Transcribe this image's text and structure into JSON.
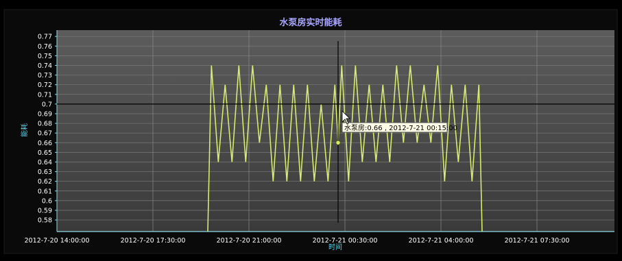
{
  "chart_data": {
    "type": "line",
    "title": "水泵房实时能耗",
    "xlabel": "时间",
    "ylabel": "能耗",
    "x_ticks": [
      "2012-7-20 14:00:00",
      "2012-7-20 17:30:00",
      "2012-7-20 21:00:00",
      "2012-7-21 00:30:00",
      "2012-7-21 04:00:00",
      "2012-7-21 07:30:00"
    ],
    "y_ticks": [
      "0.77",
      "0.76",
      "0.75",
      "0.74",
      "0.73",
      "0.72",
      "0.71",
      "0.7",
      "0.69",
      "0.68",
      "0.67",
      "0.66",
      "0.65",
      "0.64",
      "0.63",
      "0.62",
      "0.61",
      "0.6",
      "0.59",
      "0.58"
    ],
    "ylim": [
      0.568,
      0.7765
    ],
    "grid": true,
    "series": [
      {
        "name": "水泵房",
        "color": "#d5ec6c",
        "x": [
          "2012-7-20 19:30",
          "2012-7-20 19:38",
          "2012-7-20 19:53",
          "2012-7-20 20:08",
          "2012-7-20 20:23",
          "2012-7-20 20:38",
          "2012-7-20 20:53",
          "2012-7-20 21:08",
          "2012-7-20 21:23",
          "2012-7-20 21:38",
          "2012-7-20 21:53",
          "2012-7-20 22:08",
          "2012-7-20 22:23",
          "2012-7-20 22:38",
          "2012-7-20 22:53",
          "2012-7-20 23:08",
          "2012-7-20 23:23",
          "2012-7-20 23:38",
          "2012-7-20 23:53",
          "2012-7-21 00:08",
          "2012-7-21 00:15",
          "2012-7-21 00:23",
          "2012-7-21 00:38",
          "2012-7-21 00:53",
          "2012-7-21 01:08",
          "2012-7-21 01:23",
          "2012-7-21 01:38",
          "2012-7-21 01:53",
          "2012-7-21 02:08",
          "2012-7-21 02:23",
          "2012-7-21 02:38",
          "2012-7-21 02:53",
          "2012-7-21 03:08",
          "2012-7-21 03:23",
          "2012-7-21 03:38",
          "2012-7-21 03:53",
          "2012-7-21 04:08",
          "2012-7-21 04:23",
          "2012-7-21 04:38",
          "2012-7-21 04:53",
          "2012-7-21 05:08",
          "2012-7-21 05:23",
          "2012-7-21 05:30"
        ],
        "values": [
          0.568,
          0.74,
          0.64,
          0.72,
          0.64,
          0.74,
          0.64,
          0.74,
          0.66,
          0.72,
          0.62,
          0.72,
          0.62,
          0.72,
          0.62,
          0.72,
          0.62,
          0.7,
          0.62,
          0.72,
          0.66,
          0.74,
          0.62,
          0.74,
          0.64,
          0.72,
          0.64,
          0.72,
          0.64,
          0.74,
          0.66,
          0.74,
          0.66,
          0.72,
          0.66,
          0.74,
          0.62,
          0.72,
          0.64,
          0.72,
          0.62,
          0.72,
          0.568
        ]
      }
    ],
    "crosshair": {
      "x": "2012-7-21 00:15",
      "y": 0.7
    },
    "tooltip": "水泵房:0.66 , 2012-7-21 00:15:00"
  }
}
